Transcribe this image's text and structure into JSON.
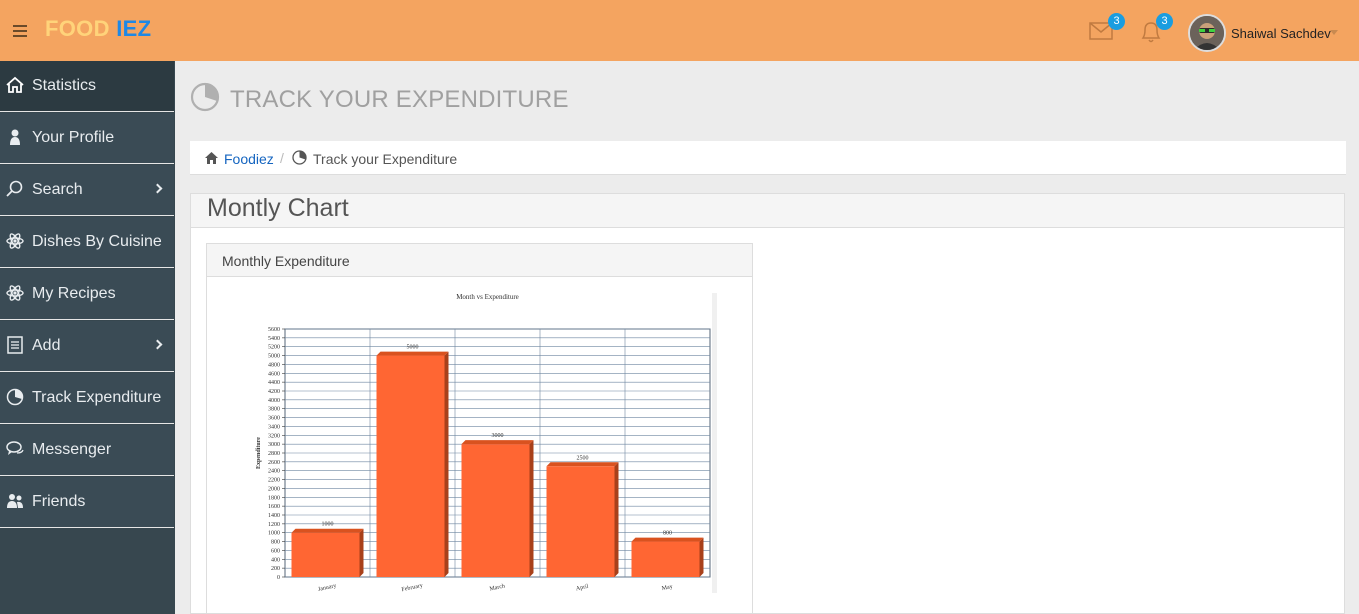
{
  "brand": {
    "part1": "FOOD",
    "part2": "IEZ"
  },
  "header": {
    "mail_count": "3",
    "notif_count": "3",
    "user_name": "Shaiwal Sachdev"
  },
  "sidebar": {
    "items": [
      {
        "label": "Statistics",
        "icon": "home-icon"
      },
      {
        "label": "Your Profile",
        "icon": "user-icon"
      },
      {
        "label": "Search",
        "icon": "search-icon"
      },
      {
        "label": "Dishes By Cuisine",
        "icon": "atom-icon"
      },
      {
        "label": "My Recipes",
        "icon": "atom-icon"
      },
      {
        "label": "Add",
        "icon": "list-icon"
      },
      {
        "label": "Track Expenditure",
        "icon": "pie-icon"
      },
      {
        "label": "Messenger",
        "icon": "chat-icon"
      },
      {
        "label": "Friends",
        "icon": "users-icon"
      }
    ]
  },
  "page": {
    "title": "TRACK YOUR EXPENDITURE",
    "breadcrumb_home": "Foodiez",
    "breadcrumb_sep": "/",
    "breadcrumb_current": "Track your Expenditure",
    "panel_title": "Montly Chart",
    "inner_title": "Monthly Expenditure"
  },
  "colors": {
    "topbar": "#f4a460",
    "bar": "#ff6633",
    "sidebar": "#37474f"
  },
  "chart_data": {
    "type": "bar",
    "title": "Month vs Expenditure",
    "xlabel": "",
    "ylabel": "Expenditure",
    "categories": [
      "January",
      "February",
      "March",
      "April",
      "May"
    ],
    "values": [
      1000,
      5000,
      3000,
      2500,
      800
    ],
    "ylim": [
      0,
      5600
    ],
    "ytick_step": 200,
    "grid": true
  }
}
